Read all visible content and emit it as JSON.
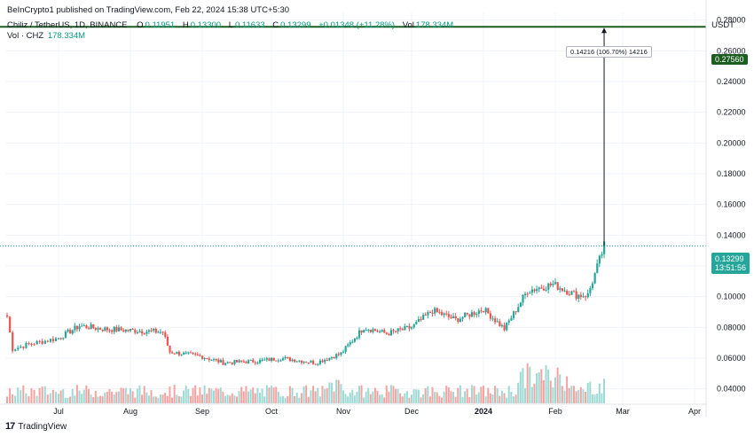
{
  "header": {
    "published": "BeInCrypto1 published on TradingView.com, Feb 22, 2024 15:38 UTC+5:30",
    "symbol": "Chiliz / TetherUS, 1D, BINANCE",
    "ohlc": [
      {
        "label": "O",
        "value": "0.11951"
      },
      {
        "label": "H",
        "value": "0.13300"
      },
      {
        "label": "L",
        "value": "0.11633"
      },
      {
        "label": "C",
        "value": "0.13299"
      }
    ],
    "change": "+0.01348 (+11.28%)",
    "vol_label": "Vol",
    "vol_value": "178.334M",
    "vol_line_label": "Vol · CHZ",
    "vol_line_value": "178.334M",
    "currency": "USDT"
  },
  "annotations": {
    "measure_label": "0.14216 (106.70%) 14216",
    "target_price": "0.27560",
    "current_price": "0.13299",
    "countdown": "13:51:56"
  },
  "footer": {
    "logo": "17",
    "brand": "TradingView"
  },
  "colors": {
    "up": "#26a69a",
    "down": "#ef5350",
    "vol_up": "#9ed9d3",
    "vol_down": "#f5a3a1",
    "target_line": "#1b5e20",
    "price_tag": "#26a69a"
  },
  "chart_data": {
    "type": "candlestick",
    "title": "Chiliz / TetherUS, 1D, BINANCE",
    "ylim": [
      0.03,
      0.285
    ],
    "y_ticks": [
      "0.28000",
      "0.26000",
      "0.24000",
      "0.22000",
      "0.20000",
      "0.18000",
      "0.16000",
      "0.14000",
      "0.12000",
      "0.10000",
      "0.08000",
      "0.06000",
      "0.04000"
    ],
    "x_ticks": [
      "Jul",
      "Aug",
      "Sep",
      "Oct",
      "Nov",
      "Dec",
      "2024",
      "Feb",
      "Mar",
      "Apr"
    ],
    "grid": true,
    "series": [
      {
        "name": "Price",
        "approx_close_path": [
          {
            "x": "Jun 12",
            "y": 0.087
          },
          {
            "x": "Jun 14",
            "y": 0.066
          },
          {
            "x": "Jun 20",
            "y": 0.069
          },
          {
            "x": "Jul 1",
            "y": 0.073
          },
          {
            "x": "Jul 10",
            "y": 0.081
          },
          {
            "x": "Jul 20",
            "y": 0.079
          },
          {
            "x": "Aug 1",
            "y": 0.078
          },
          {
            "x": "Aug 15",
            "y": 0.077
          },
          {
            "x": "Aug 18",
            "y": 0.064
          },
          {
            "x": "Sep 1",
            "y": 0.061
          },
          {
            "x": "Sep 10",
            "y": 0.057
          },
          {
            "x": "Sep 25",
            "y": 0.058
          },
          {
            "x": "Oct 5",
            "y": 0.06
          },
          {
            "x": "Oct 20",
            "y": 0.057
          },
          {
            "x": "Oct 31",
            "y": 0.063
          },
          {
            "x": "Nov 10",
            "y": 0.08
          },
          {
            "x": "Nov 20",
            "y": 0.076
          },
          {
            "x": "Dec 1",
            "y": 0.08
          },
          {
            "x": "Dec 10",
            "y": 0.091
          },
          {
            "x": "Dec 20",
            "y": 0.085
          },
          {
            "x": "Jan 1",
            "y": 0.092
          },
          {
            "x": "Jan 10",
            "y": 0.079
          },
          {
            "x": "Jan 20",
            "y": 0.104
          },
          {
            "x": "Jan 31",
            "y": 0.108
          },
          {
            "x": "Feb 10",
            "y": 0.101
          },
          {
            "x": "Feb 15",
            "y": 0.101
          },
          {
            "x": "Feb 22",
            "y": 0.133
          }
        ]
      }
    ],
    "target_level": 0.2756,
    "current_level": 0.13299
  }
}
